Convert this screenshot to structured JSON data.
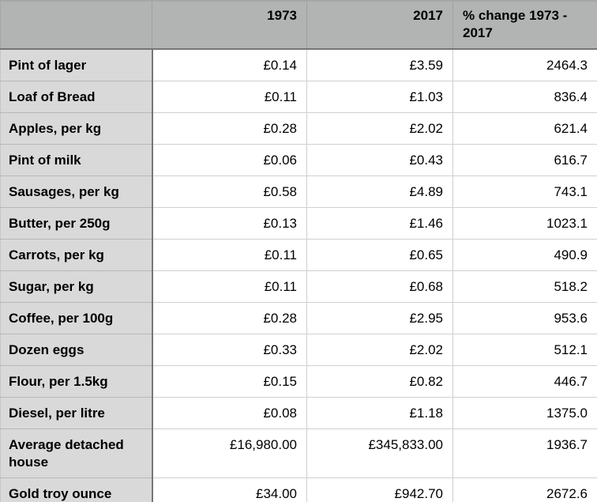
{
  "table": {
    "columns": [
      {
        "label": ""
      },
      {
        "label": "1973"
      },
      {
        "label": "2017"
      },
      {
        "label": "% change 1973 - 2017"
      }
    ],
    "rows": [
      {
        "label": "Pint of lager",
        "price_1973": "£0.14",
        "price_2017": "£3.59",
        "pct_change": "2464.3"
      },
      {
        "label": "Loaf of Bread",
        "price_1973": "£0.11",
        "price_2017": "£1.03",
        "pct_change": "836.4"
      },
      {
        "label": "Apples, per kg",
        "price_1973": "£0.28",
        "price_2017": "£2.02",
        "pct_change": "621.4"
      },
      {
        "label": "Pint of milk",
        "price_1973": "£0.06",
        "price_2017": "£0.43",
        "pct_change": "616.7"
      },
      {
        "label": "Sausages, per kg",
        "price_1973": "£0.58",
        "price_2017": "£4.89",
        "pct_change": "743.1"
      },
      {
        "label": "Butter, per 250g",
        "price_1973": "£0.13",
        "price_2017": "£1.46",
        "pct_change": "1023.1"
      },
      {
        "label": "Carrots, per kg",
        "price_1973": "£0.11",
        "price_2017": "£0.65",
        "pct_change": "490.9"
      },
      {
        "label": "Sugar, per kg",
        "price_1973": "£0.11",
        "price_2017": "£0.68",
        "pct_change": "518.2"
      },
      {
        "label": "Coffee, per 100g",
        "price_1973": "£0.28",
        "price_2017": "£2.95",
        "pct_change": "953.6"
      },
      {
        "label": "Dozen eggs",
        "price_1973": "£0.33",
        "price_2017": "£2.02",
        "pct_change": "512.1"
      },
      {
        "label": "Flour, per 1.5kg",
        "price_1973": "£0.15",
        "price_2017": "£0.82",
        "pct_change": "446.7"
      },
      {
        "label": "Diesel, per litre",
        "price_1973": "£0.08",
        "price_2017": "£1.18",
        "pct_change": "1375.0"
      },
      {
        "label": "Average detached house",
        "price_1973": "£16,980.00",
        "price_2017": "£345,833.00",
        "pct_change": "1936.7"
      },
      {
        "label": "Gold troy ounce",
        "price_1973": "£34.00",
        "price_2017": "£942.70",
        "pct_change": "2672.6"
      }
    ]
  },
  "chart_data": {
    "type": "table",
    "title": "",
    "columns": [
      "",
      "1973",
      "2017",
      "% change 1973 - 2017"
    ],
    "rows": [
      [
        "Pint of lager",
        "£0.14",
        "£3.59",
        2464.3
      ],
      [
        "Loaf of Bread",
        "£0.11",
        "£1.03",
        836.4
      ],
      [
        "Apples, per kg",
        "£0.28",
        "£2.02",
        621.4
      ],
      [
        "Pint of milk",
        "£0.06",
        "£0.43",
        616.7
      ],
      [
        "Sausages, per kg",
        "£0.58",
        "£4.89",
        743.1
      ],
      [
        "Butter, per 250g",
        "£0.13",
        "£1.46",
        1023.1
      ],
      [
        "Carrots, per kg",
        "£0.11",
        "£0.65",
        490.9
      ],
      [
        "Sugar, per kg",
        "£0.11",
        "£0.68",
        518.2
      ],
      [
        "Coffee, per 100g",
        "£0.28",
        "£2.95",
        953.6
      ],
      [
        "Dozen eggs",
        "£0.33",
        "£2.02",
        512.1
      ],
      [
        "Flour, per 1.5kg",
        "£0.15",
        "£0.82",
        446.7
      ],
      [
        "Diesel, per litre",
        "£0.08",
        "£1.18",
        1375.0
      ],
      [
        "Average detached house",
        "£16,980.00",
        "£345,833.00",
        1936.7
      ],
      [
        "Gold troy ounce",
        "£34.00",
        "£942.70",
        2672.6
      ]
    ]
  },
  "colors": {
    "header_background": "#b2b4b4",
    "label_column_background": "#d9d9d9",
    "cell_background": "#ffffff",
    "header_bottom_border": "#737676",
    "label_column_right_border": "#747777",
    "row_border": "#d0d0d0",
    "text": "#000000"
  }
}
